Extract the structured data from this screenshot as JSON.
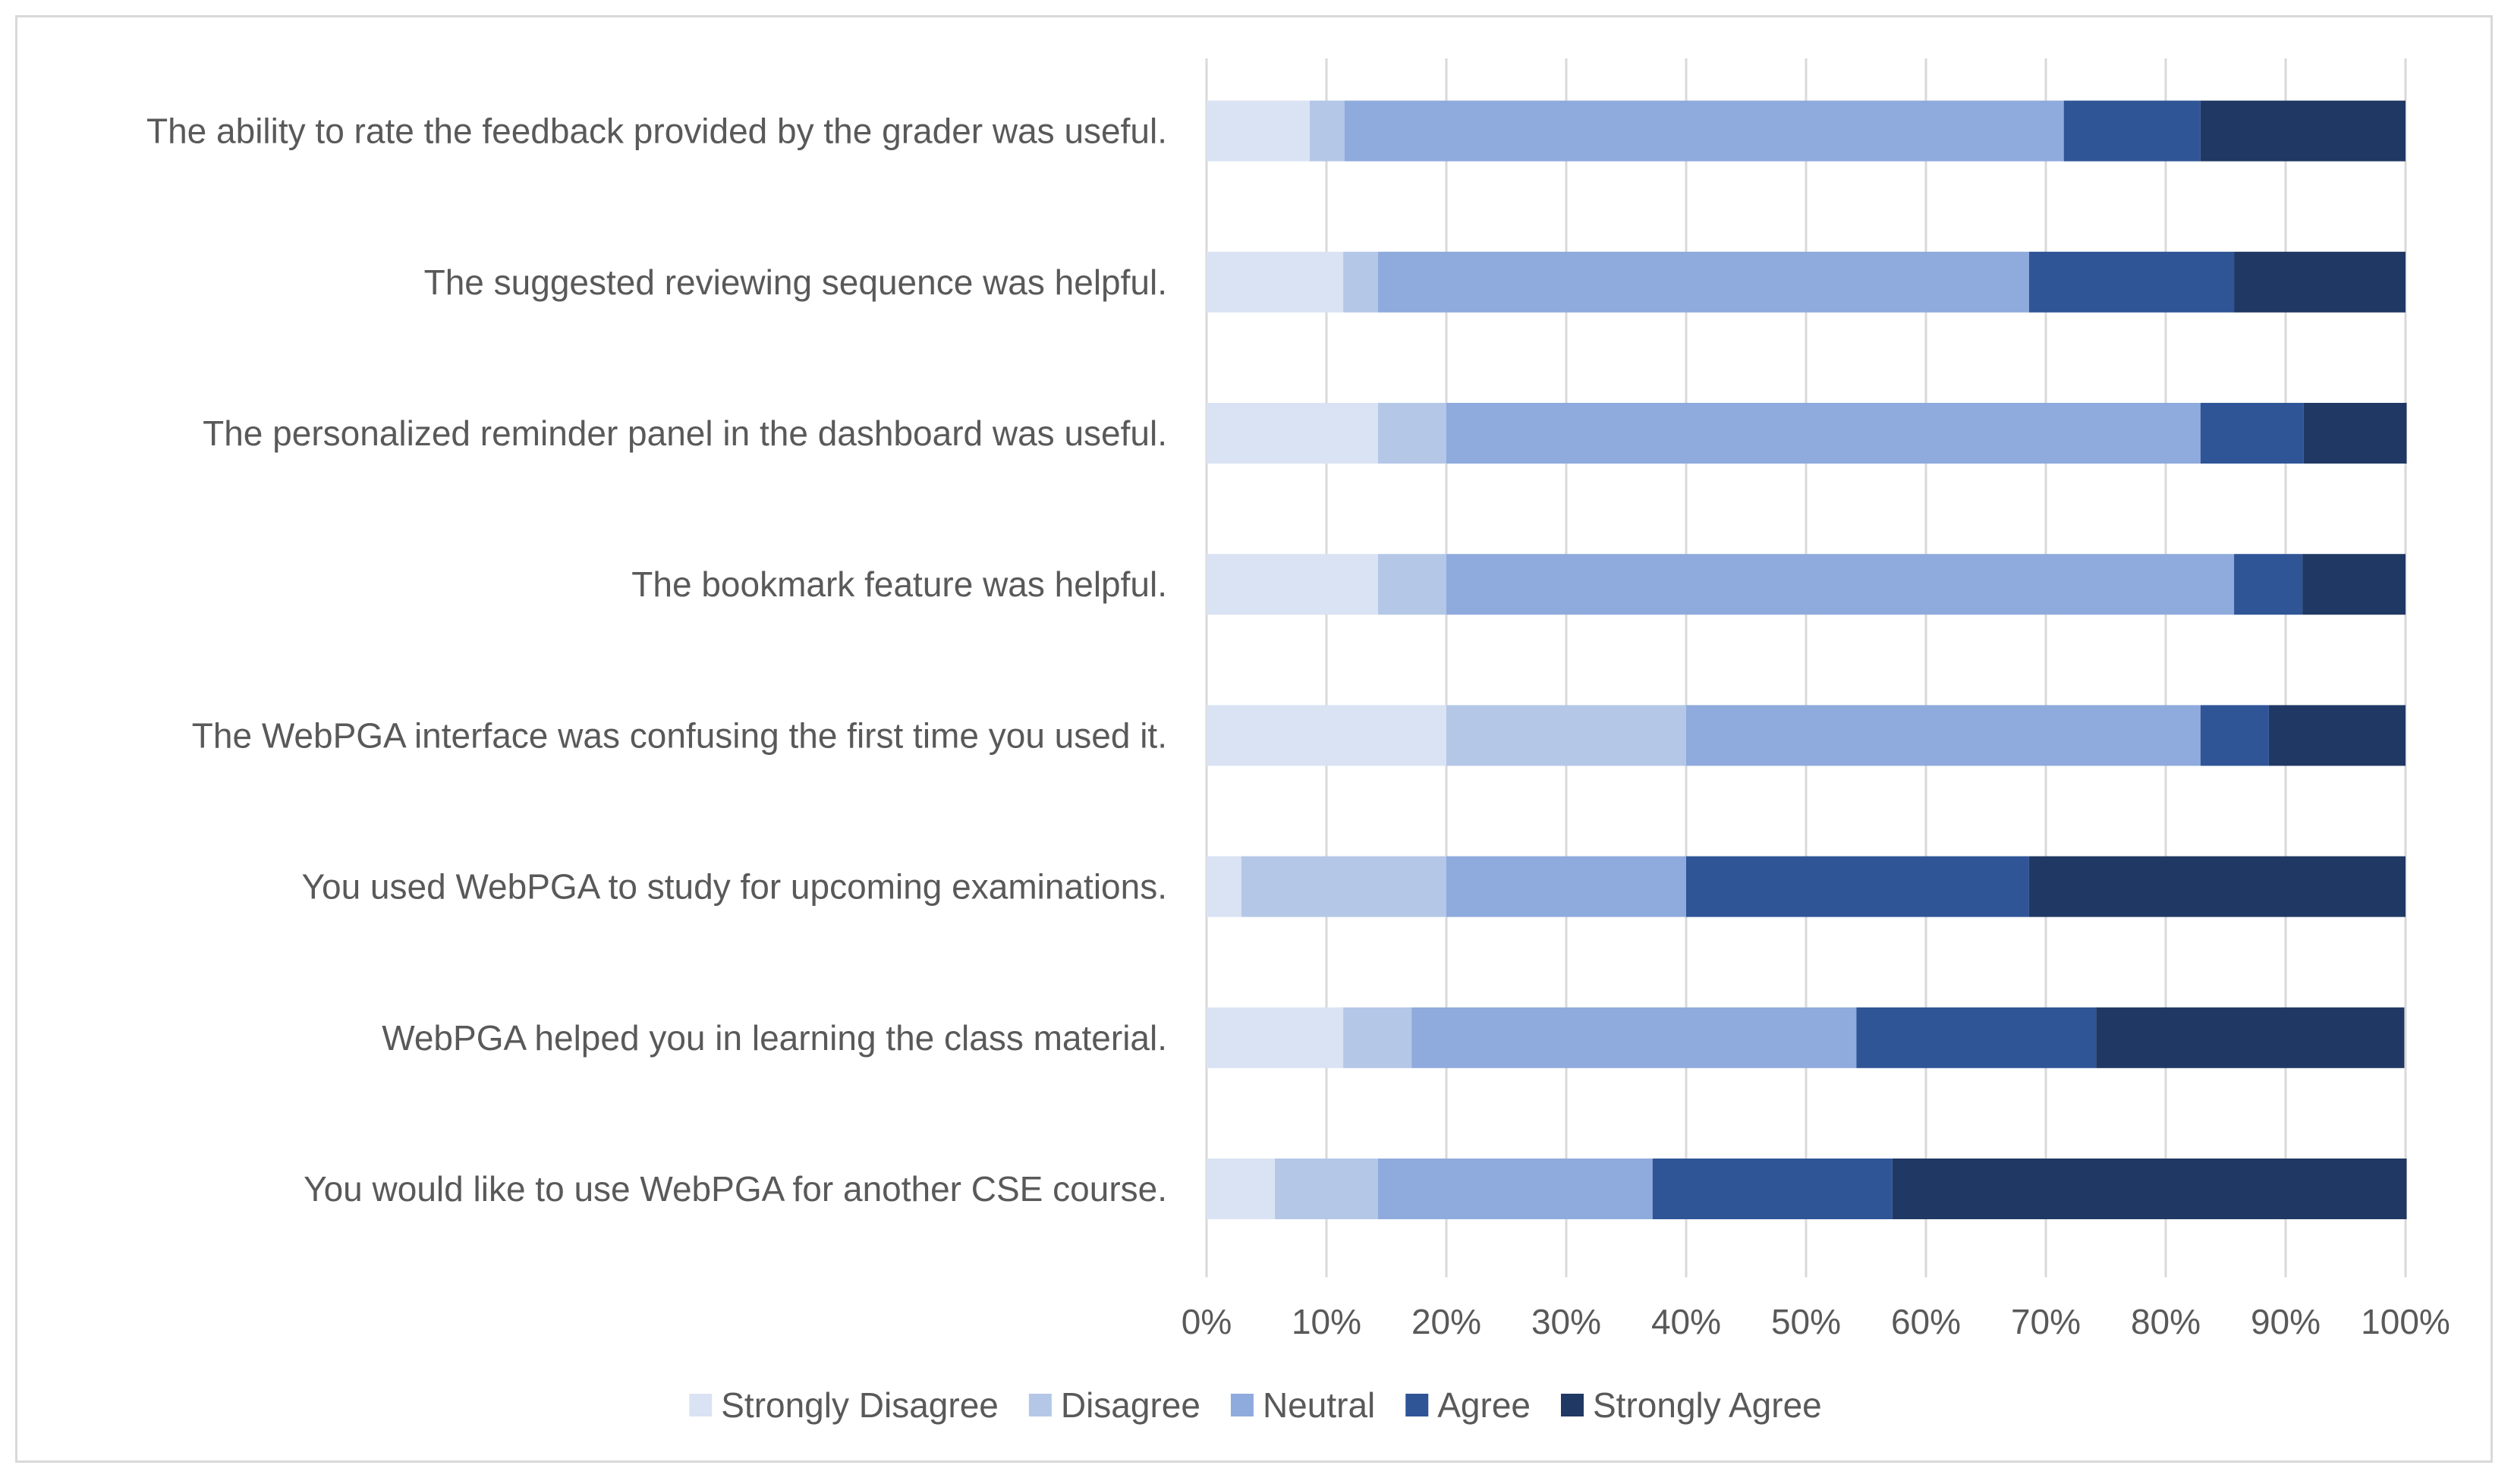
{
  "chart_data": {
    "type": "bar",
    "orientation": "horizontal",
    "stacked": "percent",
    "title": "",
    "xlabel": "",
    "ylabel": "",
    "xlim": [
      0,
      100
    ],
    "grid": true,
    "legend_position": "bottom",
    "categories": [
      "The ability to rate the feedback provided by the grader was useful.",
      "The suggested reviewing sequence was helpful.",
      "The personalized reminder panel in the dashboard was useful.",
      "The bookmark feature was helpful.",
      "The WebPGA interface was confusing the first time you used it.",
      "You used WebPGA to study for upcoming examinations.",
      "WebPGA helped you in learning the class material.",
      "You would like to use WebPGA for another CSE course."
    ],
    "x_ticks": [
      "0%",
      "10%",
      "20%",
      "30%",
      "40%",
      "50%",
      "60%",
      "70%",
      "80%",
      "90%",
      "100%"
    ],
    "series": [
      {
        "name": "Strongly Disagree",
        "color": "#dae3f3",
        "values": [
          8.6,
          11.4,
          14.3,
          14.3,
          20.0,
          2.9,
          11.4,
          5.7
        ]
      },
      {
        "name": "Disagree",
        "color": "#b4c7e7",
        "values": [
          2.9,
          2.9,
          5.7,
          5.7,
          20.0,
          17.1,
          5.7,
          8.6
        ]
      },
      {
        "name": "Neutral",
        "color": "#8faadc",
        "values": [
          60.0,
          54.3,
          62.9,
          65.7,
          42.9,
          20.0,
          37.1,
          22.9
        ]
      },
      {
        "name": "Agree",
        "color": "#2f5597",
        "values": [
          11.4,
          17.1,
          8.6,
          5.7,
          5.7,
          28.6,
          20.0,
          20.0
        ]
      },
      {
        "name": "Strongly Agree",
        "color": "#203864",
        "values": [
          17.1,
          14.3,
          8.6,
          8.6,
          11.4,
          31.4,
          25.7,
          42.9
        ]
      }
    ]
  }
}
